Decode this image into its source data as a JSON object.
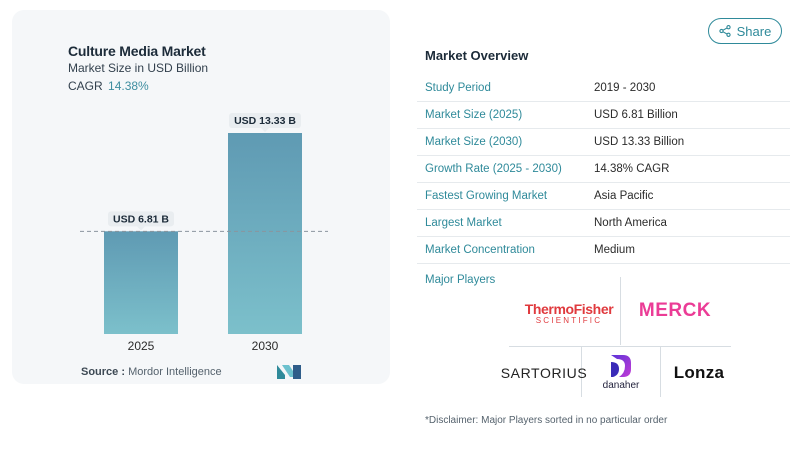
{
  "left_panel": {
    "title": "Culture Media Market",
    "subtitle": "Market Size in USD Billion",
    "cagr_label": "CAGR",
    "cagr_value": "14.38%",
    "source_label": "Source :",
    "source_name": "Mordor Intelligence"
  },
  "chart_data": {
    "type": "bar",
    "title": "Culture Media Market",
    "subtitle": "Market Size in USD Billion",
    "categories": [
      "2025",
      "2030"
    ],
    "values": [
      6.81,
      13.33
    ],
    "data_labels": [
      "USD 6.81 B",
      "USD 13.33 B"
    ],
    "reference_line_at": 6.81,
    "ylim": [
      0,
      13.33
    ],
    "grid": false,
    "colors": [
      "#5f9ab3",
      "#7cc0cb"
    ]
  },
  "share": {
    "label": "Share",
    "icon": "share-icon"
  },
  "overview": {
    "title": "Market Overview",
    "rows": [
      {
        "key": "Study Period",
        "value": "2019 - 2030"
      },
      {
        "key": "Market Size (2025)",
        "value": "USD 6.81 Billion"
      },
      {
        "key": "Market Size (2030)",
        "value": "USD 13.33 Billion"
      },
      {
        "key": "Growth Rate (2025 - 2030)",
        "value": "14.38% CAGR"
      },
      {
        "key": "Fastest Growing Market",
        "value": "Asia Pacific"
      },
      {
        "key": "Largest Market",
        "value": "North America"
      },
      {
        "key": "Market Concentration",
        "value": "Medium"
      }
    ]
  },
  "players": {
    "title": "Major Players",
    "thermo_name": "ThermoFisher",
    "thermo_sub": "SCIENTIFIC",
    "merck": "MERCK",
    "sartorius": "SARTORIUS",
    "danaher": "danaher",
    "lonza": "Lonza"
  },
  "disclaimer": "*Disclaimer: Major Players sorted in no particular order"
}
